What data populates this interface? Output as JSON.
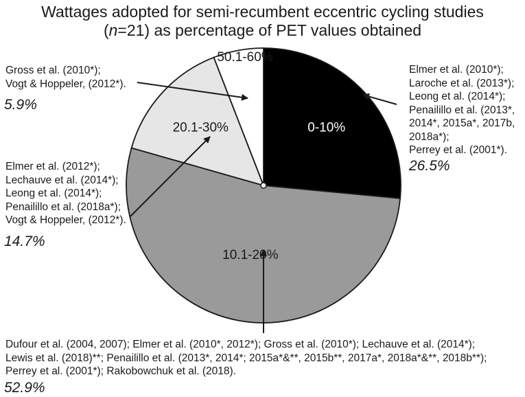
{
  "chart_data": {
    "type": "pie",
    "title_line1": "Wattages adopted for semi-recumbent eccentric cycling studies",
    "title_line2_n": "n",
    "title_line2_rest": "=21) as percentage of PET values obtained",
    "title_line2_prefix": "(",
    "slices": [
      {
        "label": "0-10%",
        "value": 26.5,
        "color": "#000000",
        "label_color": "#ffffff"
      },
      {
        "label": "10.1-20%",
        "value": 52.9,
        "color": "#9a9a9a",
        "label_color": "#1a1a1a"
      },
      {
        "label": "20.1-30%",
        "value": 14.7,
        "color": "#e6e6e6",
        "label_color": "#1a1a1a"
      },
      {
        "label": "50.1-60%",
        "value": 5.9,
        "color": "#ffffff",
        "label_color": "#1a1a1a"
      }
    ]
  },
  "annotations": {
    "a0": {
      "lines": [
        "Elmer et al. (2010*);",
        "Laroche et al. (2013*);",
        "Leong et al. (2014*);",
        "Penailillo et al. (2013*,",
        "2014*, 2015a*, 2017b,",
        "2018a*);",
        "Perrey et al. (2001*)."
      ],
      "pct": "26.5%"
    },
    "a1": {
      "lines": [
        "Dufour et al. (2004, 2007); Elmer et al. (2010*, 2012*); Gross et al. (2010*); Lechauve et al. (2014*);",
        "Lewis et al. (2018)**; Penailillo et al. (2013*, 2014*; 2015a*&**, 2015b**, 2017a*, 2018a*&**, 2018b**);",
        "Perrey et al. (2001*); Rakobowchuk et al. (2018)."
      ],
      "pct": "52.9%"
    },
    "a2": {
      "lines": [
        "Elmer et al. (2012*);",
        "Lechauve et al. (2014*);",
        "Leong et al. (2014*);",
        "Penailillo et al. (2018a*);",
        "Vogt & Hoppeler, (2012*)."
      ],
      "pct": "14.7%"
    },
    "a3": {
      "lines": [
        "Gross et al. (2010*);",
        "Vogt & Hoppeler, (2012*)."
      ],
      "pct": "5.9%"
    }
  }
}
